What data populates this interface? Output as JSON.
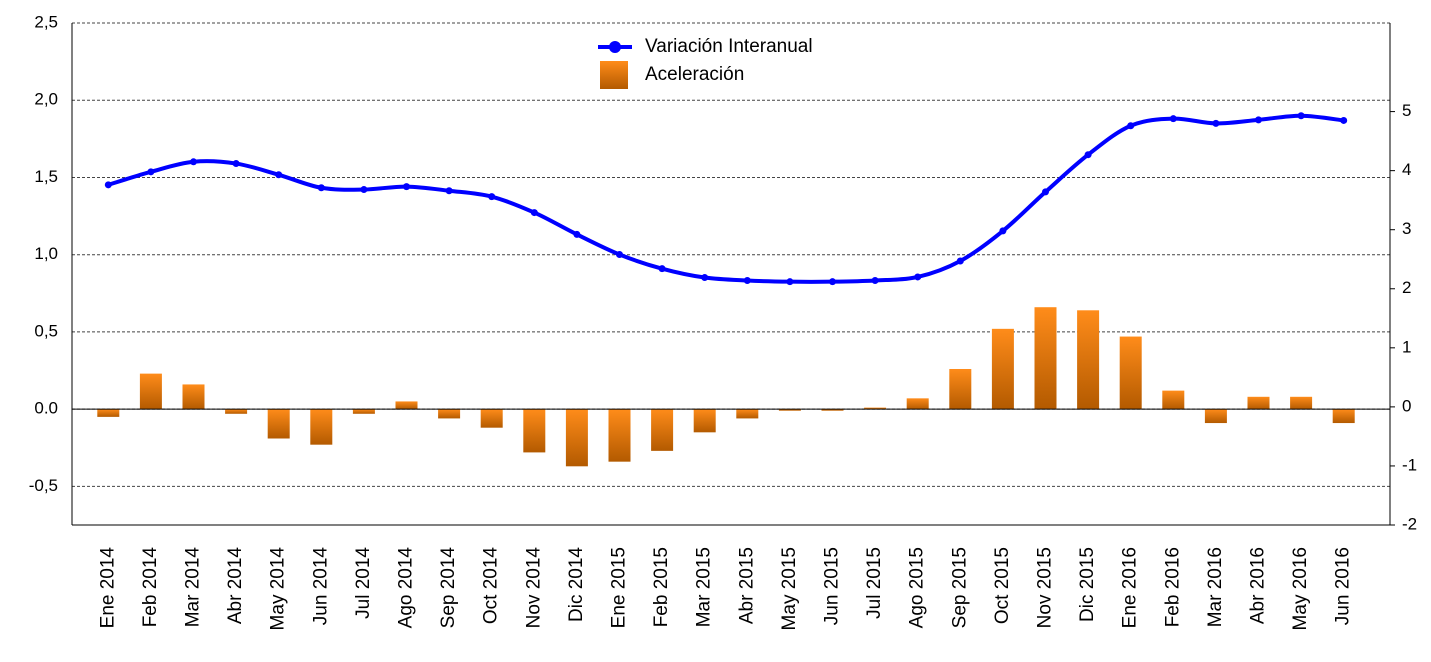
{
  "chart_data": {
    "type": "bar_line",
    "categories": [
      "Ene 2014",
      "Feb 2014",
      "Mar 2014",
      "Abr 2014",
      "May 2014",
      "Jun 2014",
      "Jul 2014",
      "Ago 2014",
      "Sep 2014",
      "Oct 2014",
      "Nov 2014",
      "Dic 2014",
      "Ene 2015",
      "Feb 2015",
      "Mar 2015",
      "Abr 2015",
      "May 2015",
      "Jun 2015",
      "Jul 2015",
      "Ago 2015",
      "Sep 2015",
      "Oct 2015",
      "Nov 2015",
      "Dic 2015",
      "Ene 2016",
      "Feb 2016",
      "Mar 2016",
      "Abr 2016",
      "May 2016",
      "Jun 2016"
    ],
    "series": [
      {
        "name": "Variación Interanual",
        "type": "line",
        "axis": "y2",
        "color": "#0000ff",
        "values": [
          3.76,
          3.98,
          4.15,
          4.12,
          3.93,
          3.71,
          3.68,
          3.73,
          3.66,
          3.56,
          3.29,
          2.92,
          2.58,
          2.34,
          2.19,
          2.14,
          2.12,
          2.12,
          2.14,
          2.2,
          2.47,
          2.98,
          3.64,
          4.27,
          4.76,
          4.88,
          4.8,
          4.86,
          4.93,
          4.85
        ]
      },
      {
        "name": "Aceleración",
        "type": "bar",
        "axis": "y",
        "color": "#e07a10",
        "values": [
          -0.05,
          0.23,
          0.16,
          -0.03,
          -0.19,
          -0.23,
          -0.03,
          0.05,
          -0.06,
          -0.12,
          -0.28,
          -0.37,
          -0.34,
          -0.27,
          -0.15,
          -0.06,
          -0.01,
          -0.01,
          0.01,
          0.07,
          0.26,
          0.52,
          0.66,
          0.64,
          0.47,
          0.12,
          -0.09,
          0.08,
          0.08,
          -0.09
        ]
      }
    ],
    "ylim": [
      -0.75,
      2.5
    ],
    "yticks": [
      {
        "value": -0.5,
        "label": "-0,5"
      },
      {
        "value": 0,
        "label": "0.0"
      },
      {
        "value": 0.5,
        "label": "0,5"
      },
      {
        "value": 1,
        "label": "1,0"
      },
      {
        "value": 1.5,
        "label": "1,5"
      },
      {
        "value": 2,
        "label": "2,0"
      },
      {
        "value": 2.5,
        "label": "2,5"
      }
    ],
    "y2lim": [
      -2,
      6.5
    ],
    "y2ticks": [
      -2,
      -1,
      0,
      1,
      2,
      3,
      4,
      5
    ],
    "grid": true,
    "legend": "top"
  }
}
